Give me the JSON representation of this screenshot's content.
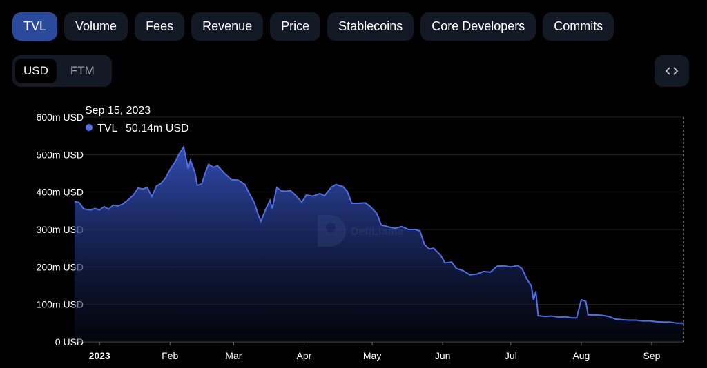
{
  "tabs": [
    "TVL",
    "Volume",
    "Fees",
    "Revenue",
    "Price",
    "Stablecoins",
    "Core Developers",
    "Commits"
  ],
  "active_tab": "TVL",
  "currency_toggle": {
    "options": [
      "USD",
      "FTM"
    ],
    "selected": "USD"
  },
  "embed_icon": "code-brackets-icon",
  "watermark": "DefiLlama",
  "tooltip": {
    "date": "Sep 15, 2023",
    "series": "TVL",
    "value": "50.14m USD"
  },
  "colors": {
    "line": "#4f6fe8",
    "active_tab": "#2c4a9c",
    "background": "#000000"
  },
  "chart_data": {
    "type": "area",
    "ylabel": "",
    "ylim": [
      0,
      600
    ],
    "yunit": "m USD",
    "y_ticks": [
      "0 USD",
      "100m USD",
      "200m USD",
      "300m USD",
      "400m USD",
      "500m USD",
      "600m USD"
    ],
    "x_ticks": [
      "2023",
      "Feb",
      "Mar",
      "Apr",
      "May",
      "Jun",
      "Jul",
      "Aug",
      "Sep"
    ],
    "x_tick_days": [
      0,
      31,
      59,
      90,
      120,
      151,
      181,
      212,
      243
    ],
    "xlim": [
      -11,
      257
    ],
    "grid": true,
    "series": [
      {
        "name": "TVL",
        "points": [
          [
            "2022-12-21",
            375
          ],
          [
            "2022-12-23",
            372
          ],
          [
            "2022-12-25",
            355
          ],
          [
            "2022-12-28",
            352
          ],
          [
            "2022-12-30",
            356
          ],
          [
            "2023-01-01",
            352
          ],
          [
            "2023-01-03",
            361
          ],
          [
            "2023-01-05",
            354
          ],
          [
            "2023-01-07",
            365
          ],
          [
            "2023-01-09",
            363
          ],
          [
            "2023-01-11",
            367
          ],
          [
            "2023-01-14",
            381
          ],
          [
            "2023-01-16",
            393
          ],
          [
            "2023-01-18",
            411
          ],
          [
            "2023-01-20",
            408
          ],
          [
            "2023-01-22",
            412
          ],
          [
            "2023-01-24",
            388
          ],
          [
            "2023-01-26",
            416
          ],
          [
            "2023-01-28",
            423
          ],
          [
            "2023-01-30",
            437
          ],
          [
            "2023-02-01",
            460
          ],
          [
            "2023-02-03",
            478
          ],
          [
            "2023-02-05",
            502
          ],
          [
            "2023-02-07",
            520
          ],
          [
            "2023-02-09",
            462
          ],
          [
            "2023-02-10",
            485
          ],
          [
            "2023-02-12",
            452
          ],
          [
            "2023-02-13",
            418
          ],
          [
            "2023-02-15",
            422
          ],
          [
            "2023-02-17",
            460
          ],
          [
            "2023-02-18",
            474
          ],
          [
            "2023-02-20",
            466
          ],
          [
            "2023-02-22",
            470
          ],
          [
            "2023-02-25",
            450
          ],
          [
            "2023-02-28",
            433
          ],
          [
            "2023-03-03",
            432
          ],
          [
            "2023-03-06",
            420
          ],
          [
            "2023-03-08",
            395
          ],
          [
            "2023-03-10",
            373
          ],
          [
            "2023-03-12",
            336
          ],
          [
            "2023-03-13",
            322
          ],
          [
            "2023-03-15",
            352
          ],
          [
            "2023-03-17",
            378
          ],
          [
            "2023-03-18",
            356
          ],
          [
            "2023-03-20",
            412
          ],
          [
            "2023-03-22",
            403
          ],
          [
            "2023-03-24",
            402
          ],
          [
            "2023-03-26",
            404
          ],
          [
            "2023-03-28",
            393
          ],
          [
            "2023-03-31",
            373
          ],
          [
            "2023-04-02",
            392
          ],
          [
            "2023-04-05",
            389
          ],
          [
            "2023-04-08",
            396
          ],
          [
            "2023-04-10",
            390
          ],
          [
            "2023-04-13",
            413
          ],
          [
            "2023-04-15",
            420
          ],
          [
            "2023-04-18",
            415
          ],
          [
            "2023-04-20",
            402
          ],
          [
            "2023-04-22",
            370
          ],
          [
            "2023-04-25",
            370
          ],
          [
            "2023-04-28",
            371
          ],
          [
            "2023-04-30",
            362
          ],
          [
            "2023-05-03",
            343
          ],
          [
            "2023-05-05",
            312
          ],
          [
            "2023-05-08",
            307
          ],
          [
            "2023-05-11",
            303
          ],
          [
            "2023-05-14",
            308
          ],
          [
            "2023-05-17",
            300
          ],
          [
            "2023-05-20",
            300
          ],
          [
            "2023-05-22",
            296
          ],
          [
            "2023-05-24",
            260
          ],
          [
            "2023-05-26",
            248
          ],
          [
            "2023-05-28",
            250
          ],
          [
            "2023-05-31",
            232
          ],
          [
            "2023-06-02",
            211
          ],
          [
            "2023-06-05",
            213
          ],
          [
            "2023-06-07",
            196
          ],
          [
            "2023-06-10",
            190
          ],
          [
            "2023-06-13",
            179
          ],
          [
            "2023-06-16",
            181
          ],
          [
            "2023-06-19",
            188
          ],
          [
            "2023-06-22",
            186
          ],
          [
            "2023-06-25",
            202
          ],
          [
            "2023-06-28",
            203
          ],
          [
            "2023-07-01",
            200
          ],
          [
            "2023-07-04",
            204
          ],
          [
            "2023-07-06",
            195
          ],
          [
            "2023-07-08",
            168
          ],
          [
            "2023-07-10",
            150
          ],
          [
            "2023-07-11",
            112
          ],
          [
            "2023-07-12",
            135
          ],
          [
            "2023-07-13",
            70
          ],
          [
            "2023-07-16",
            68
          ],
          [
            "2023-07-19",
            69
          ],
          [
            "2023-07-22",
            66
          ],
          [
            "2023-07-25",
            67
          ],
          [
            "2023-07-28",
            64
          ],
          [
            "2023-07-30",
            64
          ],
          [
            "2023-08-01",
            112
          ],
          [
            "2023-08-03",
            108
          ],
          [
            "2023-08-04",
            72
          ],
          [
            "2023-08-07",
            72
          ],
          [
            "2023-08-10",
            71
          ],
          [
            "2023-08-13",
            68
          ],
          [
            "2023-08-16",
            61
          ],
          [
            "2023-08-19",
            59
          ],
          [
            "2023-08-22",
            58
          ],
          [
            "2023-08-25",
            58
          ],
          [
            "2023-08-28",
            56
          ],
          [
            "2023-08-31",
            56
          ],
          [
            "2023-09-03",
            54
          ],
          [
            "2023-09-06",
            53
          ],
          [
            "2023-09-09",
            53
          ],
          [
            "2023-09-12",
            50
          ],
          [
            "2023-09-15",
            50
          ]
        ]
      }
    ]
  }
}
